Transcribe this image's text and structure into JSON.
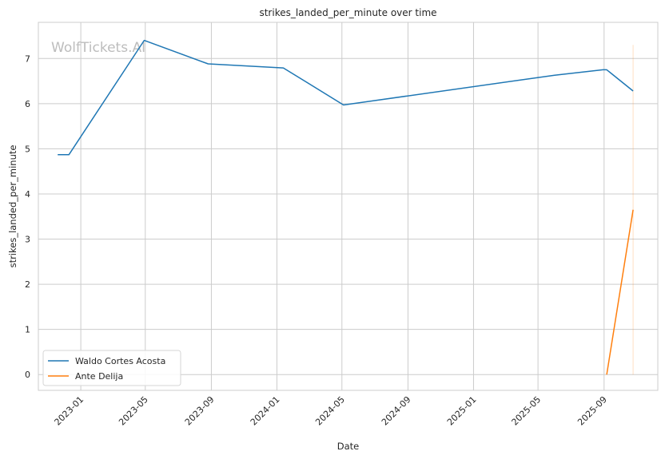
{
  "chart_data": {
    "type": "line",
    "title": "strikes_landed_per_minute over time",
    "xlabel": "Date",
    "ylabel": "strikes_landed_per_minute",
    "watermark": "WolfTickets.AI",
    "x_ticks": [
      "2023-01",
      "2023-05",
      "2023-09",
      "2024-01",
      "2024-05",
      "2024-09",
      "2025-01",
      "2025-05",
      "2025-09"
    ],
    "y_ticks": [
      0,
      1,
      2,
      3,
      4,
      5,
      6,
      7
    ],
    "xlim": [
      "2022-10-14",
      "2025-12-10"
    ],
    "ylim": [
      -0.35,
      7.8
    ],
    "grid": true,
    "legend": "lower-left",
    "series": [
      {
        "name": "Waldo Cortes Acosta",
        "color": "#1f77b4",
        "x": [
          "2022-11-19",
          "2022-12-10",
          "2023-04-29",
          "2023-08-26",
          "2024-01-13",
          "2024-05-04",
          "2025-06-01",
          "2025-08-30",
          "2025-09-06",
          "2025-10-25"
        ],
        "y": [
          4.87,
          4.87,
          7.4,
          6.88,
          6.79,
          5.97,
          6.63,
          6.75,
          6.75,
          6.28
        ]
      },
      {
        "name": "Ante Delija",
        "color": "#ff7f0e",
        "x": [
          "2025-09-06",
          "2025-10-25"
        ],
        "y": [
          0.0,
          3.65
        ],
        "band": {
          "x": "2025-10-25",
          "y_low": 0.0,
          "y_high": 7.3
        }
      }
    ]
  }
}
